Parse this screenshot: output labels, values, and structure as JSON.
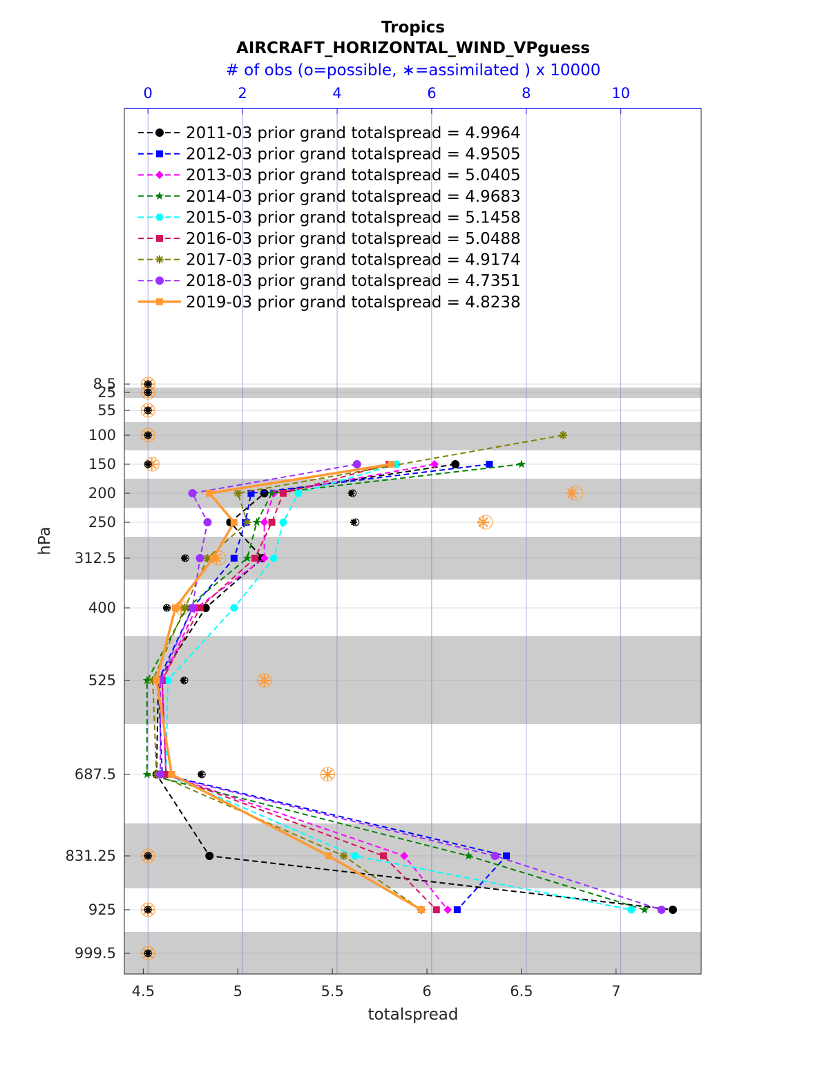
{
  "chart_data": {
    "type": "line",
    "title": "Tropics",
    "subtitle": "AIRCRAFT_HORIZONTAL_WIND_VPguess",
    "top_axis_label": "# of obs (o=possible, ∗=assimilated ) x 10000",
    "xlabel": "totalspread",
    "ylabel": "hPa",
    "xlim": [
      4.4,
      7.45
    ],
    "x_ticks": [
      "4.5",
      "5",
      "5.5",
      "6",
      "6.5",
      "7"
    ],
    "top_xlim": [
      -0.5,
      11.7
    ],
    "top_ticks": [
      "0",
      "2",
      "4",
      "6",
      "8",
      "10"
    ],
    "y_levels": [
      "8.5",
      "25",
      "55",
      "100",
      "150",
      "200",
      "250",
      "312.5",
      "400",
      "525",
      "687.5",
      "831.25",
      "925",
      "999.5"
    ],
    "grid": true,
    "legend_position": "top-left",
    "series": [
      {
        "name": "2011-03 prior grand totalspread = 4.9964",
        "color": "#000000",
        "marker": "circle",
        "style": "dashed",
        "x": [
          6.15,
          5.14,
          4.96,
          5.13,
          4.83,
          4.58,
          4.57,
          4.85,
          7.3
        ],
        "y": [
          150,
          200,
          250,
          312.5,
          400,
          525,
          687.5,
          831.25,
          925
        ]
      },
      {
        "name": "2012-03 prior grand totalspread = 4.9505",
        "color": "#0000ff",
        "marker": "square",
        "style": "dashed",
        "x": [
          6.33,
          5.07,
          5.04,
          4.98,
          4.76,
          4.58,
          4.6,
          6.42,
          6.16
        ],
        "y": [
          150,
          200,
          250,
          312.5,
          400,
          525,
          687.5,
          831.25,
          925
        ]
      },
      {
        "name": "2013-03 prior grand totalspread = 5.0405",
        "color": "#ff00ff",
        "marker": "diamond",
        "style": "dashed",
        "x": [
          6.04,
          5.19,
          5.14,
          5.14,
          4.78,
          4.6,
          4.62,
          5.88,
          6.11
        ],
        "y": [
          150,
          200,
          250,
          312.5,
          400,
          525,
          687.5,
          831.25,
          925
        ]
      },
      {
        "name": "2014-03 prior grand totalspread = 4.9683",
        "color": "#008000",
        "marker": "star",
        "style": "dashed",
        "x": [
          6.5,
          5.18,
          5.1,
          5.05,
          4.73,
          4.52,
          4.52,
          6.22,
          7.15
        ],
        "y": [
          150,
          200,
          250,
          312.5,
          400,
          525,
          687.5,
          831.25,
          925
        ]
      },
      {
        "name": "2015-03 prior grand totalspread = 5.1458",
        "color": "#00ffff",
        "marker": "hexagon",
        "style": "dashed",
        "x": [
          5.84,
          5.32,
          5.24,
          5.19,
          4.98,
          4.63,
          4.62,
          5.62,
          7.08
        ],
        "y": [
          150,
          200,
          250,
          312.5,
          400,
          525,
          687.5,
          831.25,
          925
        ]
      },
      {
        "name": "2016-03 prior grand totalspread = 5.0488",
        "color": "#d4145a",
        "marker": "square",
        "style": "dashed",
        "x": [
          5.8,
          5.24,
          5.18,
          5.09,
          4.8,
          4.6,
          4.62,
          5.77,
          6.05
        ],
        "y": [
          150,
          200,
          250,
          312.5,
          400,
          525,
          687.5,
          831.25,
          925
        ]
      },
      {
        "name": "2017-03 prior grand totalspread = 4.9174",
        "color": "#808000",
        "marker": "asterisk",
        "style": "dashed",
        "x": [
          6.72,
          5.0,
          5.05,
          4.84,
          4.72,
          4.55,
          4.57,
          5.56,
          5.97
        ],
        "y": [
          100,
          200,
          250,
          312.5,
          400,
          525,
          687.5,
          831.25,
          925
        ]
      },
      {
        "name": "2018-03 prior grand totalspread = 4.7351",
        "color": "#9b30ff",
        "marker": "circle",
        "style": "dashed",
        "x": [
          5.63,
          4.76,
          4.84,
          4.8,
          4.76,
          4.59,
          4.59,
          6.36,
          7.24
        ],
        "y": [
          150,
          200,
          250,
          312.5,
          400,
          525,
          687.5,
          831.25,
          925
        ]
      },
      {
        "name": "2019-03 prior grand totalspread = 4.8238",
        "color": "#ff9933",
        "marker": "square",
        "style": "solid",
        "x": [
          5.81,
          4.85,
          4.98,
          4.87,
          4.67,
          4.57,
          4.65,
          5.48,
          5.97
        ],
        "y": [
          150,
          200,
          250,
          312.5,
          400,
          525,
          687.5,
          831.25,
          925
        ]
      }
    ],
    "obs_counts_x10000": {
      "possible": {
        "2019-03": [
          0,
          0,
          0,
          0,
          0.09,
          9.05,
          7.14,
          1.5,
          0.72,
          2.46,
          3.8,
          0,
          0,
          0
        ],
        "2011-03": [
          0,
          0,
          0,
          0,
          0,
          4.33,
          4.39,
          0.79,
          0.4,
          0.77,
          1.14,
          0,
          0,
          0
        ]
      },
      "assimilated": {
        "2019-03": [
          0,
          0,
          0,
          0,
          0.08,
          8.97,
          7.09,
          1.45,
          0.7,
          2.46,
          3.8,
          0,
          0,
          0
        ],
        "2011-03": [
          0,
          0,
          0,
          0,
          0,
          4.3,
          4.35,
          0.77,
          0.39,
          0.75,
          1.12,
          0,
          0,
          0
        ]
      }
    }
  }
}
